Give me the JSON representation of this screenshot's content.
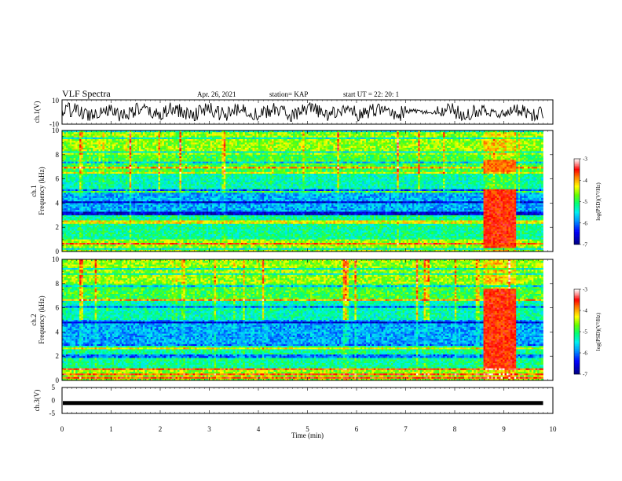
{
  "header": {
    "title": "VLF Spectra",
    "date": "Apr. 26, 2021",
    "station": "station= KAP",
    "start": "start  UT =   22: 20: 1"
  },
  "chart_data": [
    {
      "type": "line",
      "panel": "ch1-waveform",
      "ylabel": "ch.1(V)",
      "ylim": [
        -10,
        10
      ],
      "y_ticks": [
        "10",
        "-10"
      ],
      "x_range": [
        0,
        9.8
      ],
      "description_points": [
        {
          "x": 0.0,
          "y": 1.5
        },
        {
          "x": 1.0,
          "y": -2.0
        },
        {
          "x": 2.0,
          "y": 2.0
        },
        {
          "x": 3.0,
          "y": -1.5
        },
        {
          "x": 4.0,
          "y": 1.0
        },
        {
          "x": 5.0,
          "y": -2.5
        },
        {
          "x": 6.0,
          "y": 2.0
        },
        {
          "x": 7.0,
          "y": -0.5
        },
        {
          "x": 8.0,
          "y": 1.5
        },
        {
          "x": 9.0,
          "y": -2.0
        },
        {
          "x": 9.8,
          "y": 1.0
        }
      ]
    },
    {
      "type": "heatmap",
      "panel": "ch1-spectrogram",
      "ylabel": "ch.1 Frequency (kHz)",
      "ylim": [
        0,
        10
      ],
      "y_ticks": [
        "0",
        "2",
        "4",
        "6",
        "8",
        "10"
      ],
      "x_range": [
        0,
        9.8
      ],
      "colorbar": {
        "label": "log(PSD)(V²/Hz)",
        "range": [
          -7,
          -3
        ],
        "ticks": [
          "-3",
          "-4",
          "-5",
          "-6",
          "-7"
        ]
      }
    },
    {
      "type": "heatmap",
      "panel": "ch2-spectrogram",
      "ylabel": "ch.2 Frequency (kHz)",
      "ylim": [
        0,
        10
      ],
      "y_ticks": [
        "0",
        "2",
        "4",
        "6",
        "8",
        "10"
      ],
      "x_range": [
        0,
        9.8
      ],
      "colorbar": {
        "label": "log(PSD)(V²/Hz)",
        "range": [
          -7,
          -3
        ],
        "ticks": [
          "-3",
          "-4",
          "-5",
          "-6",
          "-7"
        ]
      }
    },
    {
      "type": "line",
      "panel": "ch3-waveform",
      "ylabel": "ch.3(V)",
      "ylim": [
        -5,
        5
      ],
      "y_ticks": [
        "5",
        "0",
        "-5"
      ],
      "x_range": [
        0,
        9.8
      ],
      "level": -1.0
    }
  ],
  "xaxis": {
    "label": "Time  (min)",
    "range": [
      0,
      10
    ],
    "ticks": [
      "0",
      "1",
      "2",
      "3",
      "4",
      "5",
      "6",
      "7",
      "8",
      "9",
      "10"
    ]
  },
  "colors": {
    "scale": [
      "#00008b",
      "#0000ff",
      "#00aaff",
      "#00ffff",
      "#00ff66",
      "#66ff00",
      "#ffff00",
      "#ff8800",
      "#ff0000",
      "#ffcccc",
      "#ffffff"
    ]
  }
}
